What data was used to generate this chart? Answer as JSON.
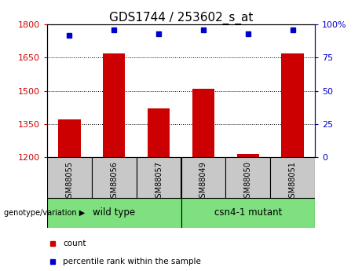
{
  "title": "GDS1744 / 253602_s_at",
  "samples": [
    "GSM88055",
    "GSM88056",
    "GSM88057",
    "GSM88049",
    "GSM88050",
    "GSM88051"
  ],
  "group_labels": [
    "wild type",
    "csn4-1 mutant"
  ],
  "counts": [
    1370,
    1670,
    1420,
    1510,
    1215,
    1670
  ],
  "percentile_ranks": [
    92,
    96,
    93,
    96,
    93,
    96
  ],
  "ylim_left": [
    1200,
    1800
  ],
  "ylim_right": [
    0,
    100
  ],
  "yticks_left": [
    1200,
    1350,
    1500,
    1650,
    1800
  ],
  "yticks_right": [
    0,
    25,
    50,
    75,
    100
  ],
  "bar_color": "#CC0000",
  "dot_color": "#0000CC",
  "bar_width": 0.5,
  "background_label": "#C8C8C8",
  "background_group": "#7EE07E",
  "title_fontsize": 11,
  "tick_fontsize": 8,
  "label_fontsize": 8.5,
  "legend_fontsize": 7.5
}
